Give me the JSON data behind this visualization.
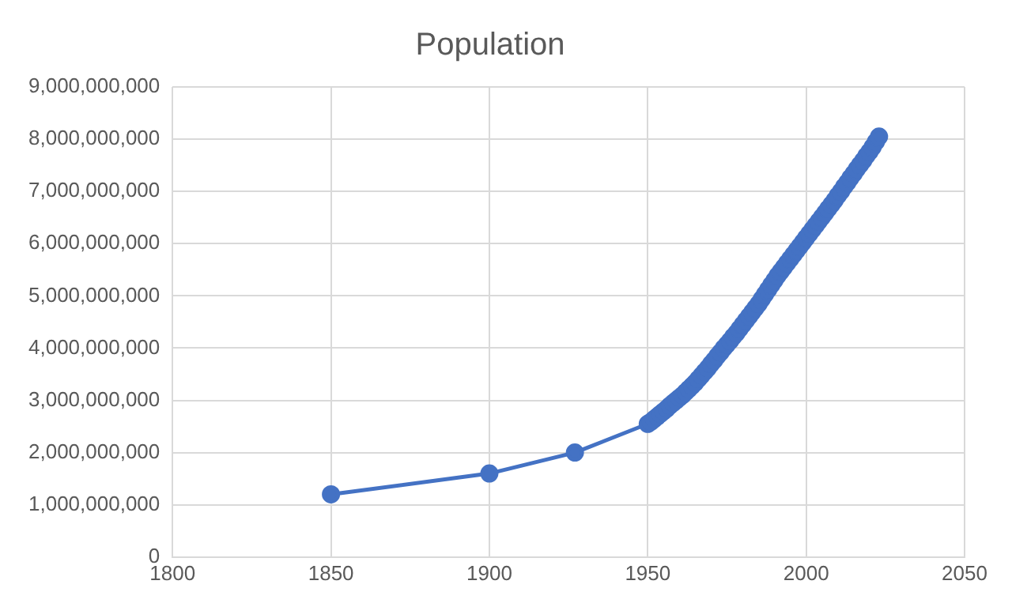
{
  "chart_data": {
    "type": "line",
    "title": "Population",
    "marker": "circle",
    "grid": true,
    "legend": false,
    "x": [
      1850,
      1900,
      1927,
      1950,
      1951,
      1952,
      1953,
      1954,
      1955,
      1956,
      1957,
      1958,
      1959,
      1960,
      1961,
      1962,
      1963,
      1964,
      1965,
      1966,
      1967,
      1968,
      1969,
      1970,
      1971,
      1972,
      1973,
      1974,
      1975,
      1976,
      1977,
      1978,
      1979,
      1980,
      1981,
      1982,
      1983,
      1984,
      1985,
      1986,
      1987,
      1988,
      1989,
      1990,
      1991,
      1992,
      1993,
      1994,
      1995,
      1996,
      1997,
      1998,
      1999,
      2000,
      2001,
      2002,
      2003,
      2004,
      2005,
      2006,
      2007,
      2008,
      2009,
      2010,
      2011,
      2012,
      2013,
      2014,
      2015,
      2016,
      2017,
      2018,
      2019,
      2020,
      2021,
      2022,
      2023
    ],
    "series": [
      {
        "color": "#4472c4",
        "values": [
          1200000000,
          1600000000,
          2000000000,
          2550000000,
          2590000000,
          2640000000,
          2690000000,
          2740000000,
          2790000000,
          2840000000,
          2900000000,
          2950000000,
          3000000000,
          3050000000,
          3100000000,
          3160000000,
          3220000000,
          3280000000,
          3340000000,
          3410000000,
          3480000000,
          3550000000,
          3620000000,
          3700000000,
          3770000000,
          3850000000,
          3920000000,
          4000000000,
          4070000000,
          4140000000,
          4220000000,
          4290000000,
          4370000000,
          4450000000,
          4530000000,
          4610000000,
          4690000000,
          4770000000,
          4850000000,
          4940000000,
          5030000000,
          5120000000,
          5210000000,
          5300000000,
          5390000000,
          5470000000,
          5550000000,
          5630000000,
          5710000000,
          5790000000,
          5870000000,
          5950000000,
          6030000000,
          6110000000,
          6190000000,
          6270000000,
          6350000000,
          6430000000,
          6510000000,
          6590000000,
          6670000000,
          6750000000,
          6830000000,
          6920000000,
          7000000000,
          7090000000,
          7170000000,
          7260000000,
          7340000000,
          7430000000,
          7510000000,
          7590000000,
          7680000000,
          7760000000,
          7850000000,
          7950000000,
          8050000000
        ]
      }
    ],
    "xlim": [
      1800,
      2050
    ],
    "xticks": [
      1800,
      1850,
      1900,
      1950,
      2000,
      2050
    ],
    "ylim": [
      0,
      9000000000
    ],
    "yticks": [
      0,
      {
        "value": 1000000000,
        "label": "1,000,000,000"
      },
      {
        "value": 2000000000,
        "label": "2,000,000,000"
      },
      {
        "value": 3000000000,
        "label": "3,000,000,000"
      },
      {
        "value": 4000000000,
        "label": "4,000,000,000"
      },
      {
        "value": 5000000000,
        "label": "5,000,000,000"
      },
      {
        "value": 6000000000,
        "label": "6,000,000,000"
      },
      {
        "value": 7000000000,
        "label": "7,000,000,000"
      },
      {
        "value": 8000000000,
        "label": "8,000,000,000"
      },
      {
        "value": 9000000000,
        "label": "9,000,000,000"
      }
    ]
  }
}
